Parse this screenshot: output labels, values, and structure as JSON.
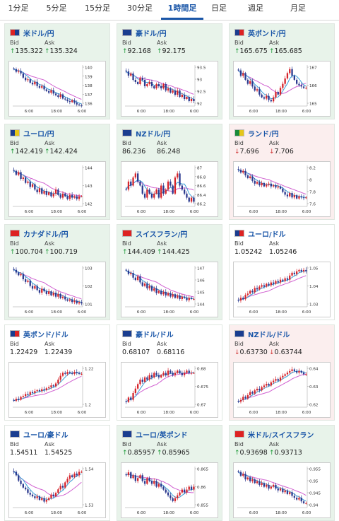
{
  "tabs": [
    {
      "label": "1分足",
      "active": false
    },
    {
      "label": "5分足",
      "active": false
    },
    {
      "label": "15分足",
      "active": false
    },
    {
      "label": "30分足",
      "active": false
    },
    {
      "label": "1時間足",
      "active": true
    },
    {
      "label": "日足",
      "active": false
    },
    {
      "label": "週足",
      "active": false
    },
    {
      "label": "月足",
      "active": false
    }
  ],
  "labels": {
    "bid": "Bid",
    "ask": "Ask"
  },
  "colors": {
    "candle_up": "#d6252c",
    "candle_down": "#2c3a8f",
    "ma1": "#3aa0d8",
    "ma2": "#d060d0",
    "up_arrow": "#1a9a35",
    "down_arrow": "#d03030",
    "pair_text": "#1a56a8"
  },
  "cards": [
    {
      "pair": "米ドル/円",
      "flag": [
        "#d22",
        "#1a3d8f"
      ],
      "bg": "up",
      "bid": "135.322",
      "ask": "135.324",
      "bid_dir": "up",
      "ask_dir": "up",
      "yticks": [
        "140",
        "139",
        "138",
        "137",
        "136"
      ],
      "xticks": [
        "6:00",
        "18:00",
        "6:00"
      ],
      "trend": "down",
      "chart_data": {
        "type": "candlestick",
        "ylim": [
          135.5,
          140.3
        ],
        "close": [
          139.8,
          139.5,
          139.6,
          139.3,
          138.8,
          138.5,
          138.6,
          138.2,
          138.0,
          138.3,
          137.8,
          137.6,
          137.8,
          137.4,
          137.2,
          137.0,
          137.3,
          136.9,
          136.7,
          136.5,
          136.8,
          136.3,
          136.2,
          136.0,
          135.9,
          136.1,
          135.8,
          135.6,
          135.5,
          135.4
        ]
      }
    },
    {
      "pair": "豪ドル/円",
      "flag": [
        "#1a3d8f",
        "#1a3d8f"
      ],
      "bg": "up",
      "bid": "92.168",
      "ask": "92.175",
      "bid_dir": "up",
      "ask_dir": "up",
      "yticks": [
        "93.5",
        "93",
        "92.5",
        "92"
      ],
      "xticks": [
        "6:00",
        "18:00",
        "6:00"
      ],
      "trend": "down",
      "chart_data": {
        "type": "candlestick",
        "ylim": [
          91.9,
          93.8
        ],
        "close": [
          93.5,
          93.3,
          93.4,
          93.1,
          93.0,
          92.9,
          93.2,
          93.1,
          92.8,
          92.9,
          93.0,
          92.8,
          92.7,
          92.9,
          92.8,
          92.7,
          92.9,
          92.6,
          92.7,
          92.5,
          92.6,
          92.4,
          92.6,
          92.3,
          92.4,
          92.2,
          92.3,
          92.1,
          92.2,
          92.1
        ]
      }
    },
    {
      "pair": "英ポンド/円",
      "flag": [
        "#1a3d8f",
        "#d22"
      ],
      "bg": "up",
      "bid": "165.675",
      "ask": "165.685",
      "bid_dir": "up",
      "ask_dir": "up",
      "yticks": [
        "167",
        "166",
        "165"
      ],
      "xticks": [
        "6:00",
        "18:00",
        "6:00"
      ],
      "trend": "vshape",
      "chart_data": {
        "type": "candlestick",
        "ylim": [
          164.4,
          167.4
        ],
        "close": [
          167.0,
          166.6,
          166.8,
          166.3,
          166.0,
          166.2,
          165.8,
          165.5,
          165.6,
          165.2,
          165.0,
          164.9,
          165.1,
          164.8,
          164.7,
          165.0,
          165.4,
          165.2,
          165.7,
          166.0,
          166.4,
          166.8,
          167.1,
          166.6,
          166.3,
          166.0,
          165.9,
          165.8,
          165.7,
          165.7
        ]
      }
    },
    {
      "pair": "ユーロ/円",
      "flag": [
        "#1a3d8f",
        "#e6c619"
      ],
      "bg": "up",
      "bid": "142.419",
      "ask": "142.424",
      "bid_dir": "up",
      "ask_dir": "up",
      "yticks": [
        "144",
        "143",
        "142"
      ],
      "xticks": [
        "6:00",
        "18:00",
        "6:00"
      ],
      "trend": "down",
      "chart_data": {
        "type": "candlestick",
        "ylim": [
          141.7,
          144.7
        ],
        "close": [
          144.3,
          144.0,
          144.2,
          143.7,
          143.8,
          143.4,
          143.5,
          143.1,
          143.3,
          142.9,
          142.7,
          143.0,
          142.6,
          142.8,
          142.5,
          142.7,
          142.4,
          142.6,
          142.9,
          142.5,
          142.3,
          142.6,
          142.4,
          142.2,
          142.5,
          142.3,
          142.4,
          142.2,
          142.4,
          142.4
        ]
      }
    },
    {
      "pair": "NZドル/円",
      "flag": [
        "#1a3d8f",
        "#1a3d8f"
      ],
      "bg": "up",
      "bid": "86.236",
      "ask": "86.248",
      "bid_dir": "none",
      "ask_dir": "none",
      "yticks": [
        "87",
        "86.8",
        "86.6",
        "86.4",
        "86.2"
      ],
      "xticks": [
        "6:00",
        "18:00",
        "6:00"
      ],
      "trend": "volatile",
      "chart_data": {
        "type": "candlestick",
        "ylim": [
          86.1,
          87.1
        ],
        "close": [
          86.5,
          86.7,
          86.6,
          86.8,
          86.9,
          86.7,
          86.6,
          86.4,
          86.3,
          86.5,
          86.4,
          86.3,
          86.4,
          86.5,
          86.3,
          86.6,
          86.4,
          86.5,
          86.7,
          86.6,
          86.4,
          86.8,
          86.9,
          86.6,
          86.5,
          86.4,
          86.3,
          86.2,
          86.3,
          86.2
        ]
      }
    },
    {
      "pair": "ランド/円",
      "flag": [
        "#1a8a3a",
        "#e6c619"
      ],
      "bg": "down",
      "bid": "7.696",
      "ask": "7.706",
      "bid_dir": "down",
      "ask_dir": "down",
      "yticks": [
        "8.2",
        "8",
        "7.8",
        "7.6"
      ],
      "xticks": [
        "6:00",
        "18:00",
        "6:00"
      ],
      "trend": "down",
      "chart_data": {
        "type": "candlestick",
        "ylim": [
          7.55,
          8.28
        ],
        "close": [
          8.2,
          8.15,
          8.18,
          8.1,
          8.05,
          8.08,
          8.0,
          7.95,
          7.98,
          7.92,
          7.96,
          7.9,
          7.93,
          7.95,
          7.9,
          7.92,
          7.88,
          7.9,
          7.86,
          7.8,
          7.75,
          7.72,
          7.78,
          7.7,
          7.74,
          7.68,
          7.72,
          7.7,
          7.69,
          7.7
        ]
      }
    },
    {
      "pair": "カナダドル/円",
      "flag": [
        "#d22",
        "#d22"
      ],
      "bg": "up",
      "bid": "100.704",
      "ask": "100.719",
      "bid_dir": "up",
      "ask_dir": "up",
      "yticks": [
        "103",
        "102",
        "101"
      ],
      "xticks": [
        "6:00",
        "18:00",
        "6:00"
      ],
      "trend": "down",
      "chart_data": {
        "type": "candlestick",
        "ylim": [
          100.5,
          103.5
        ],
        "close": [
          103.2,
          103.0,
          102.8,
          102.9,
          102.5,
          102.3,
          102.4,
          102.0,
          101.8,
          102.0,
          101.7,
          101.5,
          101.8,
          101.6,
          101.4,
          101.6,
          101.3,
          101.5,
          101.2,
          101.4,
          101.1,
          101.2,
          101.0,
          100.9,
          101.0,
          100.8,
          100.9,
          100.7,
          100.8,
          100.7
        ]
      }
    },
    {
      "pair": "スイスフラン/円",
      "flag": [
        "#d22",
        "#d22"
      ],
      "bg": "up",
      "bid": "144.409",
      "ask": "144.425",
      "bid_dir": "up",
      "ask_dir": "up",
      "yticks": [
        "147",
        "146",
        "145",
        "144"
      ],
      "xticks": [
        "6:00",
        "18:00",
        "6:00"
      ],
      "trend": "down",
      "chart_data": {
        "type": "candlestick",
        "ylim": [
          143.8,
          147.2
        ],
        "close": [
          146.8,
          146.5,
          146.6,
          146.2,
          146.0,
          146.3,
          145.8,
          145.5,
          145.7,
          145.3,
          145.5,
          145.1,
          145.3,
          144.9,
          145.1,
          144.8,
          145.0,
          144.7,
          144.9,
          144.6,
          144.8,
          144.5,
          144.7,
          144.4,
          144.6,
          144.5,
          144.3,
          144.5,
          144.4,
          144.4
        ]
      }
    },
    {
      "pair": "ユーロ/ドル",
      "flag": [
        "#1a3d8f",
        "#d22"
      ],
      "bg": "flat",
      "bid": "1.05242",
      "ask": "1.05246",
      "bid_dir": "none",
      "ask_dir": "none",
      "yticks": [
        "1.05",
        "1.04",
        "1.03"
      ],
      "xticks": [
        "6:00",
        "18:00",
        "6:00"
      ],
      "trend": "up",
      "chart_data": {
        "type": "candlestick",
        "ylim": [
          1.027,
          1.056
        ],
        "close": [
          1.031,
          1.033,
          1.032,
          1.035,
          1.036,
          1.038,
          1.037,
          1.04,
          1.039,
          1.041,
          1.042,
          1.041,
          1.043,
          1.042,
          1.044,
          1.043,
          1.045,
          1.044,
          1.046,
          1.045,
          1.047,
          1.046,
          1.049,
          1.051,
          1.05,
          1.052,
          1.053,
          1.052,
          1.053,
          1.052
        ]
      }
    },
    {
      "pair": "英ポンド/ドル",
      "flag": [
        "#1a3d8f",
        "#d22"
      ],
      "bg": "flat",
      "bid": "1.22429",
      "ask": "1.22439",
      "bid_dir": "none",
      "ask_dir": "none",
      "yticks": [
        "1.22",
        "1.2"
      ],
      "xticks": [
        "6:00",
        "18:00",
        "6:00"
      ],
      "trend": "up",
      "chart_data": {
        "type": "candlestick",
        "ylim": [
          1.19,
          1.232
        ],
        "close": [
          1.196,
          1.198,
          1.197,
          1.2,
          1.201,
          1.203,
          1.202,
          1.205,
          1.204,
          1.206,
          1.207,
          1.206,
          1.208,
          1.207,
          1.209,
          1.21,
          1.212,
          1.211,
          1.214,
          1.218,
          1.222,
          1.225,
          1.224,
          1.226,
          1.225,
          1.224,
          1.226,
          1.225,
          1.224,
          1.224
        ]
      }
    },
    {
      "pair": "豪ドル/ドル",
      "flag": [
        "#1a3d8f",
        "#1a3d8f"
      ],
      "bg": "flat",
      "bid": "0.68107",
      "ask": "0.68116",
      "bid_dir": "none",
      "ask_dir": "none",
      "yticks": [
        "0.68",
        "0.675",
        "0.67"
      ],
      "xticks": [
        "6:00",
        "18:00",
        "6:00"
      ],
      "trend": "up",
      "chart_data": {
        "type": "candlestick",
        "ylim": [
          0.666,
          0.684
        ],
        "close": [
          0.668,
          0.67,
          0.669,
          0.672,
          0.674,
          0.676,
          0.678,
          0.677,
          0.679,
          0.678,
          0.68,
          0.679,
          0.681,
          0.68,
          0.679,
          0.68,
          0.681,
          0.68,
          0.682,
          0.681,
          0.68,
          0.681,
          0.682,
          0.681,
          0.68,
          0.681,
          0.682,
          0.681,
          0.681,
          0.681
        ]
      }
    },
    {
      "pair": "NZドル/ドル",
      "flag": [
        "#1a3d8f",
        "#1a3d8f"
      ],
      "bg": "down",
      "bid": "0.63730",
      "ask": "0.63744",
      "bid_dir": "down",
      "ask_dir": "down",
      "yticks": [
        "0.64",
        "0.63",
        "0.62"
      ],
      "xticks": [
        "6:00",
        "18:00",
        "6:00"
      ],
      "trend": "up",
      "chart_data": {
        "type": "candlestick",
        "ylim": [
          0.617,
          0.642
        ],
        "close": [
          0.62,
          0.621,
          0.623,
          0.622,
          0.624,
          0.626,
          0.625,
          0.627,
          0.628,
          0.627,
          0.629,
          0.63,
          0.631,
          0.63,
          0.632,
          0.633,
          0.634,
          0.633,
          0.635,
          0.636,
          0.637,
          0.638,
          0.639,
          0.64,
          0.639,
          0.638,
          0.639,
          0.638,
          0.637,
          0.637
        ]
      }
    },
    {
      "pair": "ユーロ/豪ドル",
      "flag": [
        "#1a3d8f",
        "#1a3d8f"
      ],
      "bg": "flat",
      "bid": "1.54511",
      "ask": "1.54525",
      "bid_dir": "none",
      "ask_dir": "none",
      "yticks": [
        "1.54",
        "1.53"
      ],
      "xticks": [
        "6:00",
        "18:00",
        "6:00"
      ],
      "trend": "dip",
      "chart_data": {
        "type": "candlestick",
        "ylim": [
          1.525,
          1.548
        ],
        "close": [
          1.545,
          1.543,
          1.54,
          1.538,
          1.536,
          1.535,
          1.533,
          1.532,
          1.531,
          1.53,
          1.531,
          1.529,
          1.53,
          1.528,
          1.529,
          1.53,
          1.532,
          1.531,
          1.533,
          1.535,
          1.537,
          1.536,
          1.539,
          1.541,
          1.543,
          1.542,
          1.544,
          1.543,
          1.545,
          1.545
        ]
      }
    },
    {
      "pair": "ユーロ/英ポンド",
      "flag": [
        "#1a3d8f",
        "#1a3d8f"
      ],
      "bg": "up",
      "bid": "0.85957",
      "ask": "0.85965",
      "bid_dir": "up",
      "ask_dir": "up",
      "yticks": [
        "0.865",
        "0.86",
        "0.855"
      ],
      "xticks": [
        "6:00",
        "18:00",
        "6:00"
      ],
      "trend": "down",
      "chart_data": {
        "type": "candlestick",
        "ylim": [
          0.853,
          0.867
        ],
        "close": [
          0.864,
          0.865,
          0.863,
          0.864,
          0.862,
          0.863,
          0.864,
          0.862,
          0.861,
          0.863,
          0.862,
          0.861,
          0.862,
          0.86,
          0.861,
          0.86,
          0.859,
          0.858,
          0.857,
          0.856,
          0.855,
          0.856,
          0.857,
          0.858,
          0.859,
          0.858,
          0.859,
          0.86,
          0.859,
          0.86
        ]
      }
    },
    {
      "pair": "米ドル/スイスフラン",
      "flag": [
        "#d22",
        "#d22"
      ],
      "bg": "up",
      "bid": "0.93698",
      "ask": "0.93713",
      "bid_dir": "up",
      "ask_dir": "up",
      "yticks": [
        "0.955",
        "0.95",
        "0.945",
        "0.94"
      ],
      "xticks": [
        "6:00",
        "18:00",
        "6:00"
      ],
      "trend": "down",
      "chart_data": {
        "type": "candlestick",
        "ylim": [
          0.935,
          0.957
        ],
        "close": [
          0.954,
          0.952,
          0.953,
          0.95,
          0.951,
          0.949,
          0.95,
          0.948,
          0.949,
          0.947,
          0.948,
          0.946,
          0.947,
          0.945,
          0.946,
          0.947,
          0.945,
          0.944,
          0.945,
          0.943,
          0.944,
          0.942,
          0.943,
          0.941,
          0.94,
          0.939,
          0.94,
          0.938,
          0.937,
          0.937
        ]
      }
    }
  ]
}
